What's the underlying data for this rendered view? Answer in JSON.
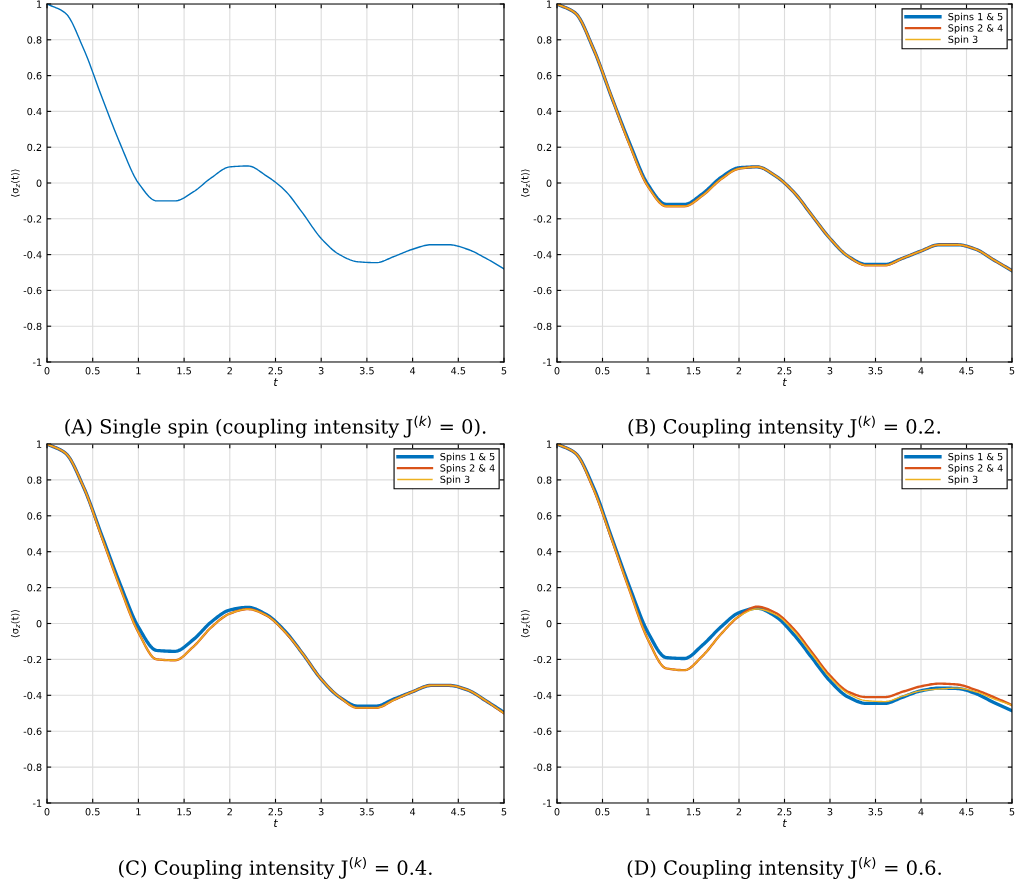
{
  "chart_data": [
    {
      "type": "line",
      "title": "(A) Single spin (coupling intensity J$^{(k)}$ = 0).",
      "xlabel": "t",
      "ylabel": "⟨σ$_{z}$(t)⟩",
      "x": [
        0,
        0.2,
        0.4,
        0.6,
        0.8,
        1.0,
        1.2,
        1.4,
        1.6,
        1.8,
        2.0,
        2.2,
        2.4,
        2.6,
        2.8,
        3.0,
        3.2,
        3.4,
        3.6,
        3.8,
        4.0,
        4.2,
        4.4,
        4.6,
        4.8,
        5.0
      ],
      "series": [
        {
          "color": "#0072bd",
          "values": [
            1,
            0.95,
            0.75,
            0.48,
            0.22,
            0.0,
            -0.1,
            -0.1,
            -0.05,
            0.03,
            0.09,
            0.095,
            0.04,
            -0.04,
            -0.17,
            -0.31,
            -0.4,
            -0.44,
            -0.445,
            -0.41,
            -0.37,
            -0.345,
            -0.345,
            -0.37,
            -0.42,
            -0.48
          ]
        }
      ],
      "xlim": [
        0,
        5
      ],
      "ylim": [
        -1,
        1
      ],
      "xticks": [
        0,
        0.5,
        1,
        1.5,
        2,
        2.5,
        3,
        3.5,
        4,
        4.5,
        5
      ],
      "yticks": [
        -1,
        -0.8,
        -0.6,
        -0.4,
        -0.2,
        0,
        0.2,
        0.4,
        0.6,
        0.8,
        1
      ],
      "grid": true
    },
    {
      "type": "line",
      "title": "(B) Coupling intensity J$^{(k)}$ = 0.2.",
      "xlabel": "t",
      "ylabel": "⟨σ$_{z}$(t)⟩",
      "x": [
        0,
        0.2,
        0.4,
        0.6,
        0.8,
        1.0,
        1.2,
        1.4,
        1.6,
        1.8,
        2.0,
        2.2,
        2.4,
        2.6,
        2.8,
        3.0,
        3.2,
        3.4,
        3.6,
        3.8,
        4.0,
        4.2,
        4.4,
        4.6,
        4.8,
        5.0
      ],
      "series": [
        {
          "name": "Spins 1 & 5",
          "color": "#0072bd",
          "values": [
            1,
            0.95,
            0.75,
            0.48,
            0.22,
            -0.01,
            -0.12,
            -0.12,
            -0.06,
            0.03,
            0.085,
            0.09,
            0.04,
            -0.05,
            -0.18,
            -0.31,
            -0.41,
            -0.455,
            -0.455,
            -0.42,
            -0.38,
            -0.345,
            -0.345,
            -0.37,
            -0.43,
            -0.49
          ]
        },
        {
          "name": "Spins 2 & 4",
          "color": "#d95319",
          "values": [
            1,
            0.95,
            0.75,
            0.48,
            0.21,
            -0.02,
            -0.13,
            -0.13,
            -0.07,
            0.02,
            0.08,
            0.09,
            0.04,
            -0.05,
            -0.18,
            -0.31,
            -0.41,
            -0.46,
            -0.46,
            -0.42,
            -0.38,
            -0.345,
            -0.345,
            -0.37,
            -0.43,
            -0.49
          ]
        },
        {
          "name": "Spin 3",
          "color": "#edb120",
          "values": [
            1,
            0.95,
            0.75,
            0.48,
            0.21,
            -0.02,
            -0.13,
            -0.13,
            -0.07,
            0.02,
            0.08,
            0.09,
            0.04,
            -0.05,
            -0.18,
            -0.31,
            -0.41,
            -0.46,
            -0.46,
            -0.42,
            -0.38,
            -0.345,
            -0.345,
            -0.37,
            -0.43,
            -0.49
          ]
        }
      ],
      "xlim": [
        0,
        5
      ],
      "ylim": [
        -1,
        1
      ],
      "xticks": [
        0,
        0.5,
        1,
        1.5,
        2,
        2.5,
        3,
        3.5,
        4,
        4.5,
        5
      ],
      "yticks": [
        -1,
        -0.8,
        -0.6,
        -0.4,
        -0.2,
        0,
        0.2,
        0.4,
        0.6,
        0.8,
        1
      ],
      "grid": true,
      "legend": "top right"
    },
    {
      "type": "line",
      "title": "(C) Coupling intensity J$^{(k)}$ = 0.4.",
      "xlabel": "t",
      "ylabel": "⟨σ$_{z}$(t)⟩",
      "x": [
        0,
        0.2,
        0.4,
        0.6,
        0.8,
        1.0,
        1.2,
        1.4,
        1.6,
        1.8,
        2.0,
        2.2,
        2.4,
        2.6,
        2.8,
        3.0,
        3.2,
        3.4,
        3.6,
        3.8,
        4.0,
        4.2,
        4.4,
        4.6,
        4.8,
        5.0
      ],
      "series": [
        {
          "name": "Spins 1 & 5",
          "color": "#0072bd",
          "values": [
            1,
            0.95,
            0.76,
            0.49,
            0.22,
            -0.02,
            -0.15,
            -0.155,
            -0.09,
            0.01,
            0.075,
            0.09,
            0.05,
            -0.04,
            -0.17,
            -0.31,
            -0.41,
            -0.46,
            -0.46,
            -0.42,
            -0.38,
            -0.345,
            -0.345,
            -0.37,
            -0.43,
            -0.495
          ]
        },
        {
          "name": "Spins 2 & 4",
          "color": "#d95319",
          "values": [
            1,
            0.95,
            0.76,
            0.48,
            0.2,
            -0.05,
            -0.2,
            -0.205,
            -0.13,
            -0.02,
            0.055,
            0.08,
            0.045,
            -0.045,
            -0.17,
            -0.31,
            -0.41,
            -0.47,
            -0.47,
            -0.425,
            -0.38,
            -0.345,
            -0.345,
            -0.37,
            -0.43,
            -0.5
          ]
        },
        {
          "name": "Spin 3",
          "color": "#edb120",
          "values": [
            1,
            0.95,
            0.76,
            0.48,
            0.2,
            -0.05,
            -0.2,
            -0.205,
            -0.13,
            -0.02,
            0.055,
            0.08,
            0.045,
            -0.045,
            -0.17,
            -0.31,
            -0.41,
            -0.47,
            -0.47,
            -0.425,
            -0.38,
            -0.345,
            -0.345,
            -0.37,
            -0.43,
            -0.5
          ]
        }
      ],
      "xlim": [
        0,
        5
      ],
      "ylim": [
        -1,
        1
      ],
      "xticks": [
        0,
        0.5,
        1,
        1.5,
        2,
        2.5,
        3,
        3.5,
        4,
        4.5,
        5
      ],
      "yticks": [
        -1,
        -0.8,
        -0.6,
        -0.4,
        -0.2,
        0,
        0.2,
        0.4,
        0.6,
        0.8,
        1
      ],
      "grid": true,
      "legend": "top right"
    },
    {
      "type": "line",
      "title": "(D) Coupling intensity J$^{(k)}$ = 0.6.",
      "xlabel": "t",
      "ylabel": "⟨σ$_{z}$(t)⟩",
      "x": [
        0,
        0.2,
        0.4,
        0.6,
        0.8,
        1.0,
        1.2,
        1.4,
        1.6,
        1.8,
        2.0,
        2.2,
        2.4,
        2.6,
        2.8,
        3.0,
        3.2,
        3.4,
        3.6,
        3.8,
        4.0,
        4.2,
        4.4,
        4.6,
        4.8,
        5.0
      ],
      "series": [
        {
          "name": "Spins 1 & 5",
          "color": "#0072bd",
          "values": [
            1,
            0.95,
            0.76,
            0.48,
            0.2,
            -0.05,
            -0.19,
            -0.195,
            -0.12,
            -0.02,
            0.06,
            0.085,
            0.04,
            -0.06,
            -0.19,
            -0.32,
            -0.41,
            -0.445,
            -0.445,
            -0.41,
            -0.375,
            -0.36,
            -0.362,
            -0.39,
            -0.44,
            -0.486
          ]
        },
        {
          "name": "Spins 2 & 4",
          "color": "#d95319",
          "values": [
            1,
            0.95,
            0.75,
            0.47,
            0.18,
            -0.09,
            -0.25,
            -0.26,
            -0.18,
            -0.06,
            0.04,
            0.094,
            0.06,
            -0.03,
            -0.16,
            -0.29,
            -0.38,
            -0.41,
            -0.41,
            -0.38,
            -0.35,
            -0.335,
            -0.34,
            -0.37,
            -0.41,
            -0.455
          ]
        },
        {
          "name": "Spin 3",
          "color": "#edb120",
          "values": [
            1,
            0.95,
            0.75,
            0.47,
            0.18,
            -0.09,
            -0.25,
            -0.26,
            -0.18,
            -0.06,
            0.04,
            0.081,
            0.05,
            -0.04,
            -0.17,
            -0.3,
            -0.39,
            -0.43,
            -0.435,
            -0.405,
            -0.375,
            -0.365,
            -0.36,
            -0.38,
            -0.42,
            -0.455
          ]
        }
      ],
      "xlim": [
        0,
        5
      ],
      "ylim": [
        -1,
        1
      ],
      "xticks": [
        0,
        0.5,
        1,
        1.5,
        2,
        2.5,
        3,
        3.5,
        4,
        4.5,
        5
      ],
      "yticks": [
        -1,
        -0.8,
        -0.6,
        -0.4,
        -0.2,
        0,
        0.2,
        0.4,
        0.6,
        0.8,
        1
      ],
      "grid": true,
      "legend": "top right"
    }
  ]
}
